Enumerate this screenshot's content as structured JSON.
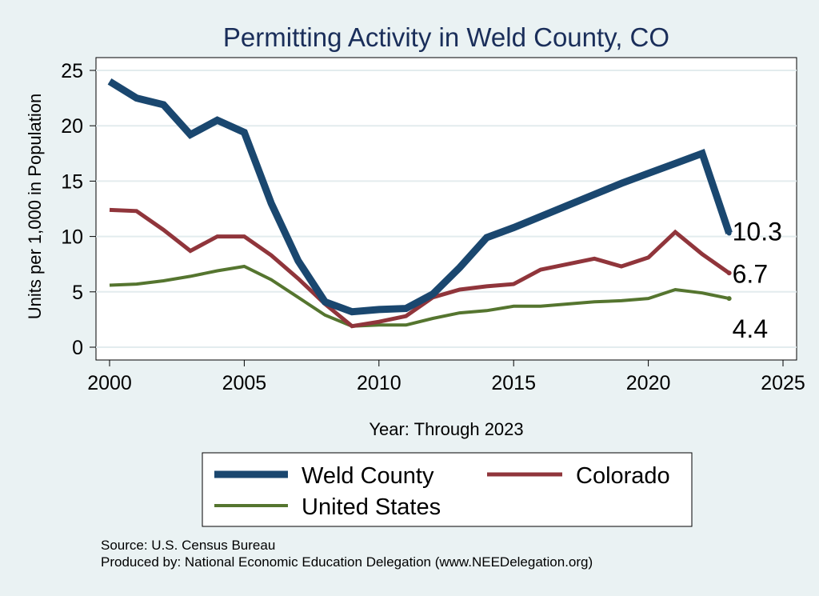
{
  "chart_data": {
    "type": "line",
    "title": "Permitting Activity in Weld County, CO",
    "xlabel": "Year: Through 2023",
    "ylabel": "Units per 1,000 in Population",
    "xlim": [
      2000,
      2025
    ],
    "ylim": [
      0,
      25
    ],
    "x_ticks": [
      2000,
      2005,
      2010,
      2015,
      2020,
      2025
    ],
    "y_ticks": [
      0,
      5,
      10,
      15,
      20,
      25
    ],
    "x_tick_labels": [
      "2000",
      "2005",
      "2010",
      "2015",
      "2020",
      "2025"
    ],
    "y_tick_labels": [
      "0",
      "5",
      "10",
      "15",
      "20",
      "25"
    ],
    "grid": true,
    "legend_position": "bottom",
    "x": [
      2000,
      2001,
      2002,
      2003,
      2004,
      2005,
      2006,
      2007,
      2008,
      2009,
      2010,
      2011,
      2012,
      2013,
      2014,
      2015,
      2016,
      2017,
      2018,
      2019,
      2020,
      2021,
      2022,
      2023
    ],
    "series": [
      {
        "name": "Weld County",
        "color": "#1a476f",
        "values": [
          24.0,
          22.5,
          21.9,
          19.2,
          20.5,
          19.4,
          13.0,
          7.8,
          4.1,
          3.2,
          3.4,
          3.5,
          4.8,
          7.2,
          9.9,
          10.8,
          11.8,
          12.8,
          13.8,
          14.8,
          15.7,
          16.6,
          17.5,
          10.3
        ],
        "end_label": "10.3"
      },
      {
        "name": "Colorado",
        "color": "#90353b",
        "values": [
          12.4,
          12.3,
          10.6,
          8.7,
          10.0,
          10.0,
          8.3,
          6.2,
          3.9,
          1.9,
          2.3,
          2.8,
          4.5,
          5.2,
          5.5,
          5.7,
          7.0,
          7.5,
          8.0,
          7.3,
          8.1,
          10.4,
          8.4,
          6.7
        ],
        "end_label": "6.7"
      },
      {
        "name": "United States",
        "color": "#55752f",
        "values": [
          5.6,
          5.7,
          6.0,
          6.4,
          6.9,
          7.3,
          6.1,
          4.5,
          2.9,
          1.9,
          2.0,
          2.0,
          2.6,
          3.1,
          3.3,
          3.7,
          3.7,
          3.9,
          4.1,
          4.2,
          4.4,
          5.2,
          4.9,
          4.4
        ],
        "end_label": "4.4"
      }
    ]
  },
  "notes": {
    "source": "Source: U.S. Census Bureau",
    "produced": "Produced by: National Economic Education Delegation (www.NEEDelegation.org)"
  }
}
